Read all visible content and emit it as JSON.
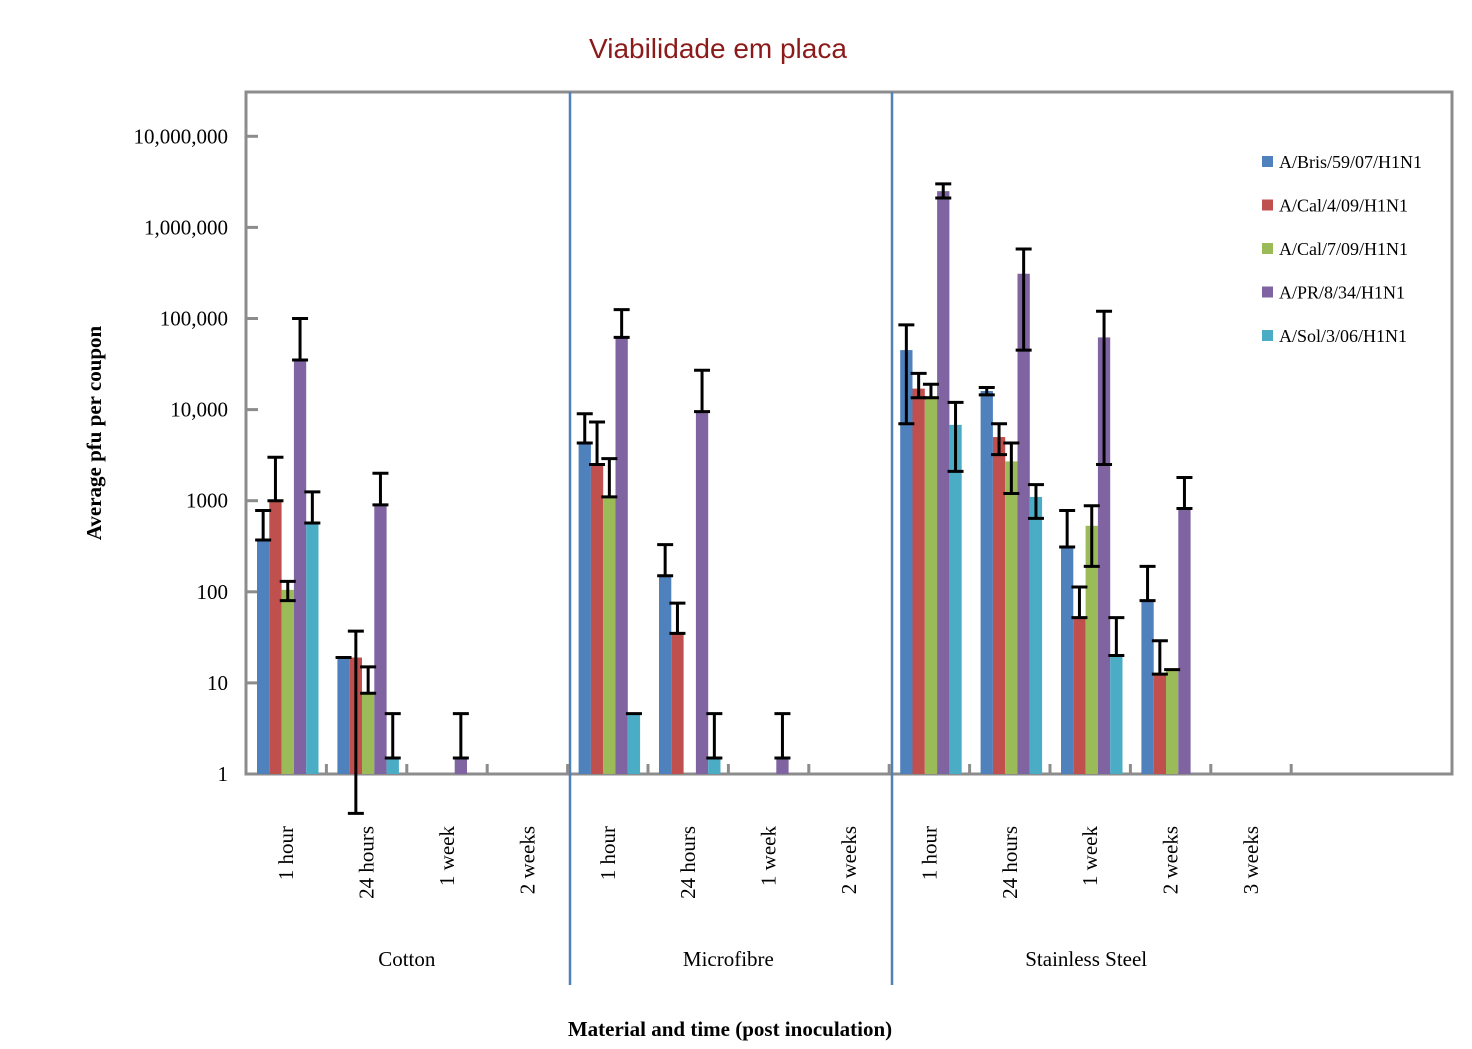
{
  "chart_data": {
    "type": "bar",
    "title": "Viabilidade em placa",
    "xlabel": "Material and time (post inoculation)",
    "ylabel": "Average pfu per coupon",
    "yscale": "log",
    "ylim": [
      1,
      10000000
    ],
    "yticks": [
      {
        "value": 1,
        "label": "1"
      },
      {
        "value": 10,
        "label": "10"
      },
      {
        "value": 100,
        "label": "100"
      },
      {
        "value": 1000,
        "label": "1000"
      },
      {
        "value": 10000,
        "label": "10,000"
      },
      {
        "value": 100000,
        "label": "100,000"
      },
      {
        "value": 1000000,
        "label": "1,000,000"
      },
      {
        "value": 10000000,
        "label": "10,000,000"
      }
    ],
    "grid": false,
    "legend_position": "top-right",
    "groups": [
      {
        "name": "Cotton",
        "categories": [
          "1 hour",
          "24 hours",
          "1 week",
          "2 weeks"
        ]
      },
      {
        "name": "Microfibre",
        "categories": [
          "1 hour",
          "24 hours",
          "1 week",
          "2 weeks"
        ]
      },
      {
        "name": "Stainless Steel",
        "categories": [
          "1 hour",
          "24 hours",
          "1 week",
          "2 weeks",
          "3 weeks"
        ]
      }
    ],
    "series": [
      {
        "name": "A/Bris/59/07/H1N1",
        "color": "#4f81bd",
        "values": [
          370,
          19,
          null,
          null,
          4300,
          150,
          null,
          null,
          45000,
          16000,
          310,
          80,
          null
        ],
        "err_high": [
          780,
          null,
          null,
          null,
          9000,
          330,
          null,
          null,
          85000,
          17500,
          780,
          190,
          null
        ],
        "err_low": [
          null,
          null,
          null,
          null,
          null,
          null,
          null,
          null,
          7000,
          14500,
          null,
          null,
          null
        ]
      },
      {
        "name": "A/Cal/4/09/H1N1",
        "color": "#c0504d",
        "values": [
          1000,
          19,
          null,
          null,
          2500,
          35,
          null,
          null,
          17000,
          5000,
          52,
          12.5,
          null
        ],
        "err_high": [
          3000,
          37,
          null,
          null,
          7300,
          75,
          null,
          null,
          25000,
          7000,
          113,
          29,
          null
        ],
        "err_low": [
          null,
          0.37,
          null,
          null,
          null,
          null,
          null,
          null,
          13500,
          3200,
          null,
          null,
          null
        ]
      },
      {
        "name": "A/Cal/7/09/H1N1",
        "color": "#9bbb59",
        "values": [
          105,
          7.7,
          null,
          null,
          1100,
          null,
          null,
          null,
          14000,
          2700,
          530,
          14,
          null
        ],
        "err_high": [
          130,
          15,
          null,
          null,
          2900,
          null,
          null,
          null,
          19000,
          4300,
          880,
          null,
          null
        ],
        "err_low": [
          80,
          null,
          null,
          null,
          null,
          null,
          null,
          null,
          13500,
          1200,
          190,
          null,
          null
        ]
      },
      {
        "name": "A/PR/8/34/H1N1",
        "color": "#8064a2",
        "values": [
          35000,
          900,
          1.5,
          null,
          62000,
          9500,
          1.5,
          null,
          2500000,
          310000,
          62000,
          820,
          null
        ],
        "err_high": [
          100000,
          2000,
          4.6,
          null,
          125000,
          27000,
          4.6,
          null,
          3000000,
          580000,
          120000,
          1800,
          null
        ],
        "err_low": [
          null,
          null,
          null,
          null,
          null,
          null,
          null,
          null,
          2100000,
          45000,
          2500,
          null,
          null
        ]
      },
      {
        "name": "A/Sol/3/06/H1N1",
        "color": "#4bacc6",
        "values": [
          570,
          1.5,
          null,
          null,
          4.6,
          1.5,
          null,
          null,
          6800,
          1100,
          20,
          null,
          null
        ],
        "err_high": [
          1250,
          4.6,
          null,
          null,
          null,
          4.6,
          null,
          null,
          12000,
          1500,
          52,
          null,
          null
        ],
        "err_low": [
          null,
          null,
          null,
          null,
          null,
          null,
          null,
          null,
          2100,
          640,
          null,
          null,
          null
        ]
      }
    ]
  }
}
